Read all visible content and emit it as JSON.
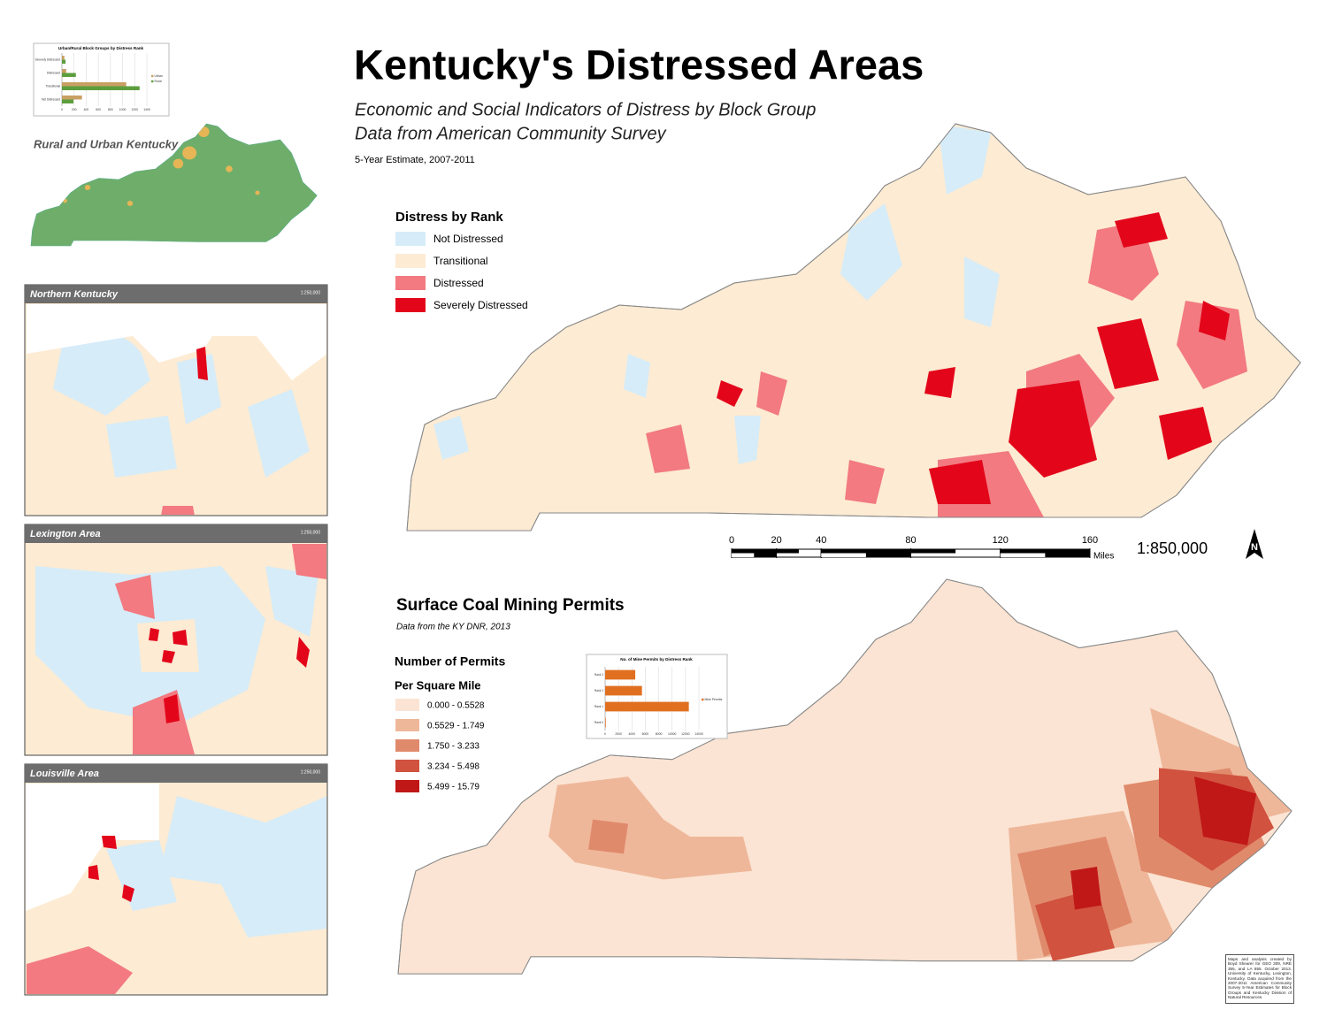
{
  "title": "Kentucky's Distressed Areas",
  "subtitle_lines": [
    "Economic and Social Indicators of Distress by Block Group",
    "Data from American Community Survey"
  ],
  "estimate_note": "5-Year Estimate, 2007-2011",
  "distress_legend": {
    "title": "Distress by Rank",
    "items": [
      {
        "label": "Not Distressed",
        "color": "#d6ecf8"
      },
      {
        "label": "Transitional",
        "color": "#fdebd3"
      },
      {
        "label": "Distressed",
        "color": "#f27a80"
      },
      {
        "label": "Severely Distressed",
        "color": "#e3061b"
      }
    ]
  },
  "scale_bar": {
    "ticks": [
      0,
      20,
      40,
      80,
      120,
      160
    ],
    "unit": "Miles",
    "ratio": "1:850,000"
  },
  "coal_map": {
    "title": "Surface Coal Mining Permits",
    "source": "Data from the KY DNR, 2013",
    "legend_title": "Number of Permits",
    "legend_subtitle": "Per Square Mile",
    "classes": [
      {
        "label": "0.000 - 0.5528",
        "color": "#fbe4d3"
      },
      {
        "label": "0.5529 - 1.749",
        "color": "#efb79a"
      },
      {
        "label": "1.750 - 3.233",
        "color": "#e08a6c"
      },
      {
        "label": "3.234 - 5.498",
        "color": "#d0523f"
      },
      {
        "label": "5.499 - 15.79",
        "color": "#c01717"
      }
    ]
  },
  "rural_urban_label": "Rural and Urban Kentucky",
  "insets": [
    {
      "name": "Northern Kentucky",
      "scale": "1:250,000"
    },
    {
      "name": "Lexington Area",
      "scale": "1:250,000"
    },
    {
      "name": "Louisville Area",
      "scale": "1:250,000"
    }
  ],
  "credits": "Maps and analysis created by Boyd Shearer for GEO 309, NRE 355, and LA 855. October 2013. University of Kentucky, Lexington, Kentucky. Data acquired from the 2007-2011 American Community Survey 5-Year Estimates for Block Groups and Kentucky Division of Natural Resources.",
  "chart_data": [
    {
      "type": "bar",
      "orientation": "horizontal",
      "title": "Urban/Rural Block Groups by Distress Rank",
      "categories": [
        "Severely Distressed",
        "Distressed",
        "Transitional",
        "Not Distressed"
      ],
      "series": [
        {
          "name": "Urban",
          "color": "#c8a064",
          "values": [
            40,
            70,
            1060,
            330
          ]
        },
        {
          "name": "Rural",
          "color": "#5c9e3e",
          "values": [
            60,
            230,
            1280,
            190
          ]
        }
      ],
      "xlim": [
        0,
        1400
      ],
      "xticks": [
        0,
        200,
        400,
        600,
        800,
        1000,
        1200,
        1400
      ]
    },
    {
      "type": "bar",
      "orientation": "horizontal",
      "title": "No. of Mine Permits by Distress Rank",
      "categories": [
        "Rank 3",
        "Rank 2",
        "Rank 1",
        "Rank 0"
      ],
      "series": [
        {
          "name": "Mine Permits",
          "color": "#e07020",
          "values": [
            4500,
            5500,
            12500,
            100
          ]
        }
      ],
      "xlim": [
        0,
        14000
      ],
      "xticks": [
        0,
        2000,
        4000,
        6000,
        8000,
        10000,
        12000,
        14000
      ]
    }
  ]
}
